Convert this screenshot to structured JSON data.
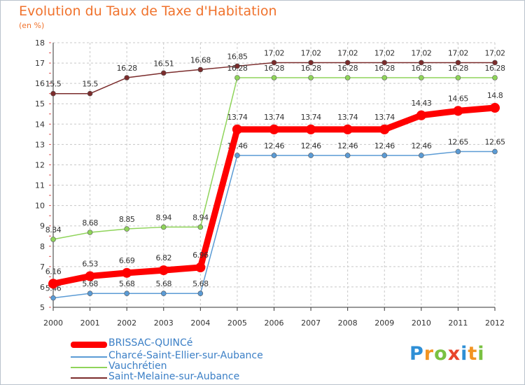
{
  "chart_data": {
    "type": "line",
    "title": "Evolution du Taux de Taxe d'Habitation",
    "subtitle": "(en %)",
    "xlabel": "",
    "ylabel": "",
    "ylim": [
      5,
      18
    ],
    "yticks": [
      "5",
      "6",
      "7",
      "8",
      "9",
      "10",
      "11",
      "12",
      "13",
      "14",
      "15",
      "16",
      "17",
      "18"
    ],
    "categories": [
      "2000",
      "2001",
      "2002",
      "2003",
      "2004",
      "2005",
      "2006",
      "2007",
      "2008",
      "2009",
      "2010",
      "2011",
      "2012"
    ],
    "grid": true,
    "legend_position": "bottom-left",
    "series": [
      {
        "name": "Saint-Melaine-sur-Aubance",
        "color": "#7b2c2c",
        "values": [
          15.5,
          15.5,
          16.28,
          16.51,
          16.68,
          16.85,
          17.02,
          17.02,
          17.02,
          17.02,
          17.02,
          17.02,
          17.02
        ],
        "labels": [
          "15.5",
          "15.5",
          "16.28",
          "16.51",
          "16.68",
          "16.85",
          "17.02",
          "17.02",
          "17.02",
          "17.02",
          "17.02",
          "17.02",
          "17.02"
        ]
      },
      {
        "name": "Vauchrétien",
        "color": "#8fd45a",
        "values": [
          8.34,
          8.68,
          8.85,
          8.94,
          8.94,
          16.28,
          16.28,
          16.28,
          16.28,
          16.28,
          16.28,
          16.28,
          16.28
        ],
        "labels": [
          "8.34",
          "8.68",
          "8.85",
          "8.94",
          "8.94",
          "16.28",
          "16.28",
          "16.28",
          "16.28",
          "16.28",
          "16.28",
          "16.28",
          "16.28"
        ]
      },
      {
        "name": "Charcé-Saint-Ellier-sur-Aubance",
        "color": "#5b9bd5",
        "values": [
          5.46,
          5.68,
          5.68,
          5.68,
          5.68,
          12.46,
          12.46,
          12.46,
          12.46,
          12.46,
          12.46,
          12.65,
          12.65
        ],
        "labels": [
          "5.46",
          "5.68",
          "5.68",
          "5.68",
          "5.68",
          "12.46",
          "12.46",
          "12.46",
          "12.46",
          "12.46",
          "12.46",
          "12.65",
          "12.65"
        ]
      },
      {
        "name": "BRISSAC-QUINCé",
        "color": "#ff0000",
        "values": [
          6.16,
          6.53,
          6.69,
          6.82,
          6.96,
          13.74,
          13.74,
          13.74,
          13.74,
          13.74,
          14.43,
          14.65,
          14.8
        ],
        "labels": [
          "6.16",
          "6.53",
          "6.69",
          "6.82",
          "6.96",
          "13.74",
          "13.74",
          "13.74",
          "13.74",
          "13.74",
          "14.43",
          "14.65",
          "14.8"
        ]
      }
    ]
  },
  "legend": {
    "items": [
      {
        "label": "BRISSAC-QUINCé",
        "color": "#ff0000"
      },
      {
        "label": "Charcé-Saint-Ellier-sur-Aubance",
        "color": "#5b9bd5"
      },
      {
        "label": "Vauchrétien",
        "color": "#8fd45a"
      },
      {
        "label": "Saint-Melaine-sur-Aubance",
        "color": "#7b2c2c"
      }
    ]
  },
  "brand": {
    "letters": [
      "P",
      "r",
      "o",
      "x",
      "i",
      "t",
      "i"
    ],
    "colors": [
      "#2e8fd6",
      "#f29422",
      "#7ac142",
      "#e8452c",
      "#2e8fd6",
      "#f29422",
      "#7ac142"
    ]
  }
}
